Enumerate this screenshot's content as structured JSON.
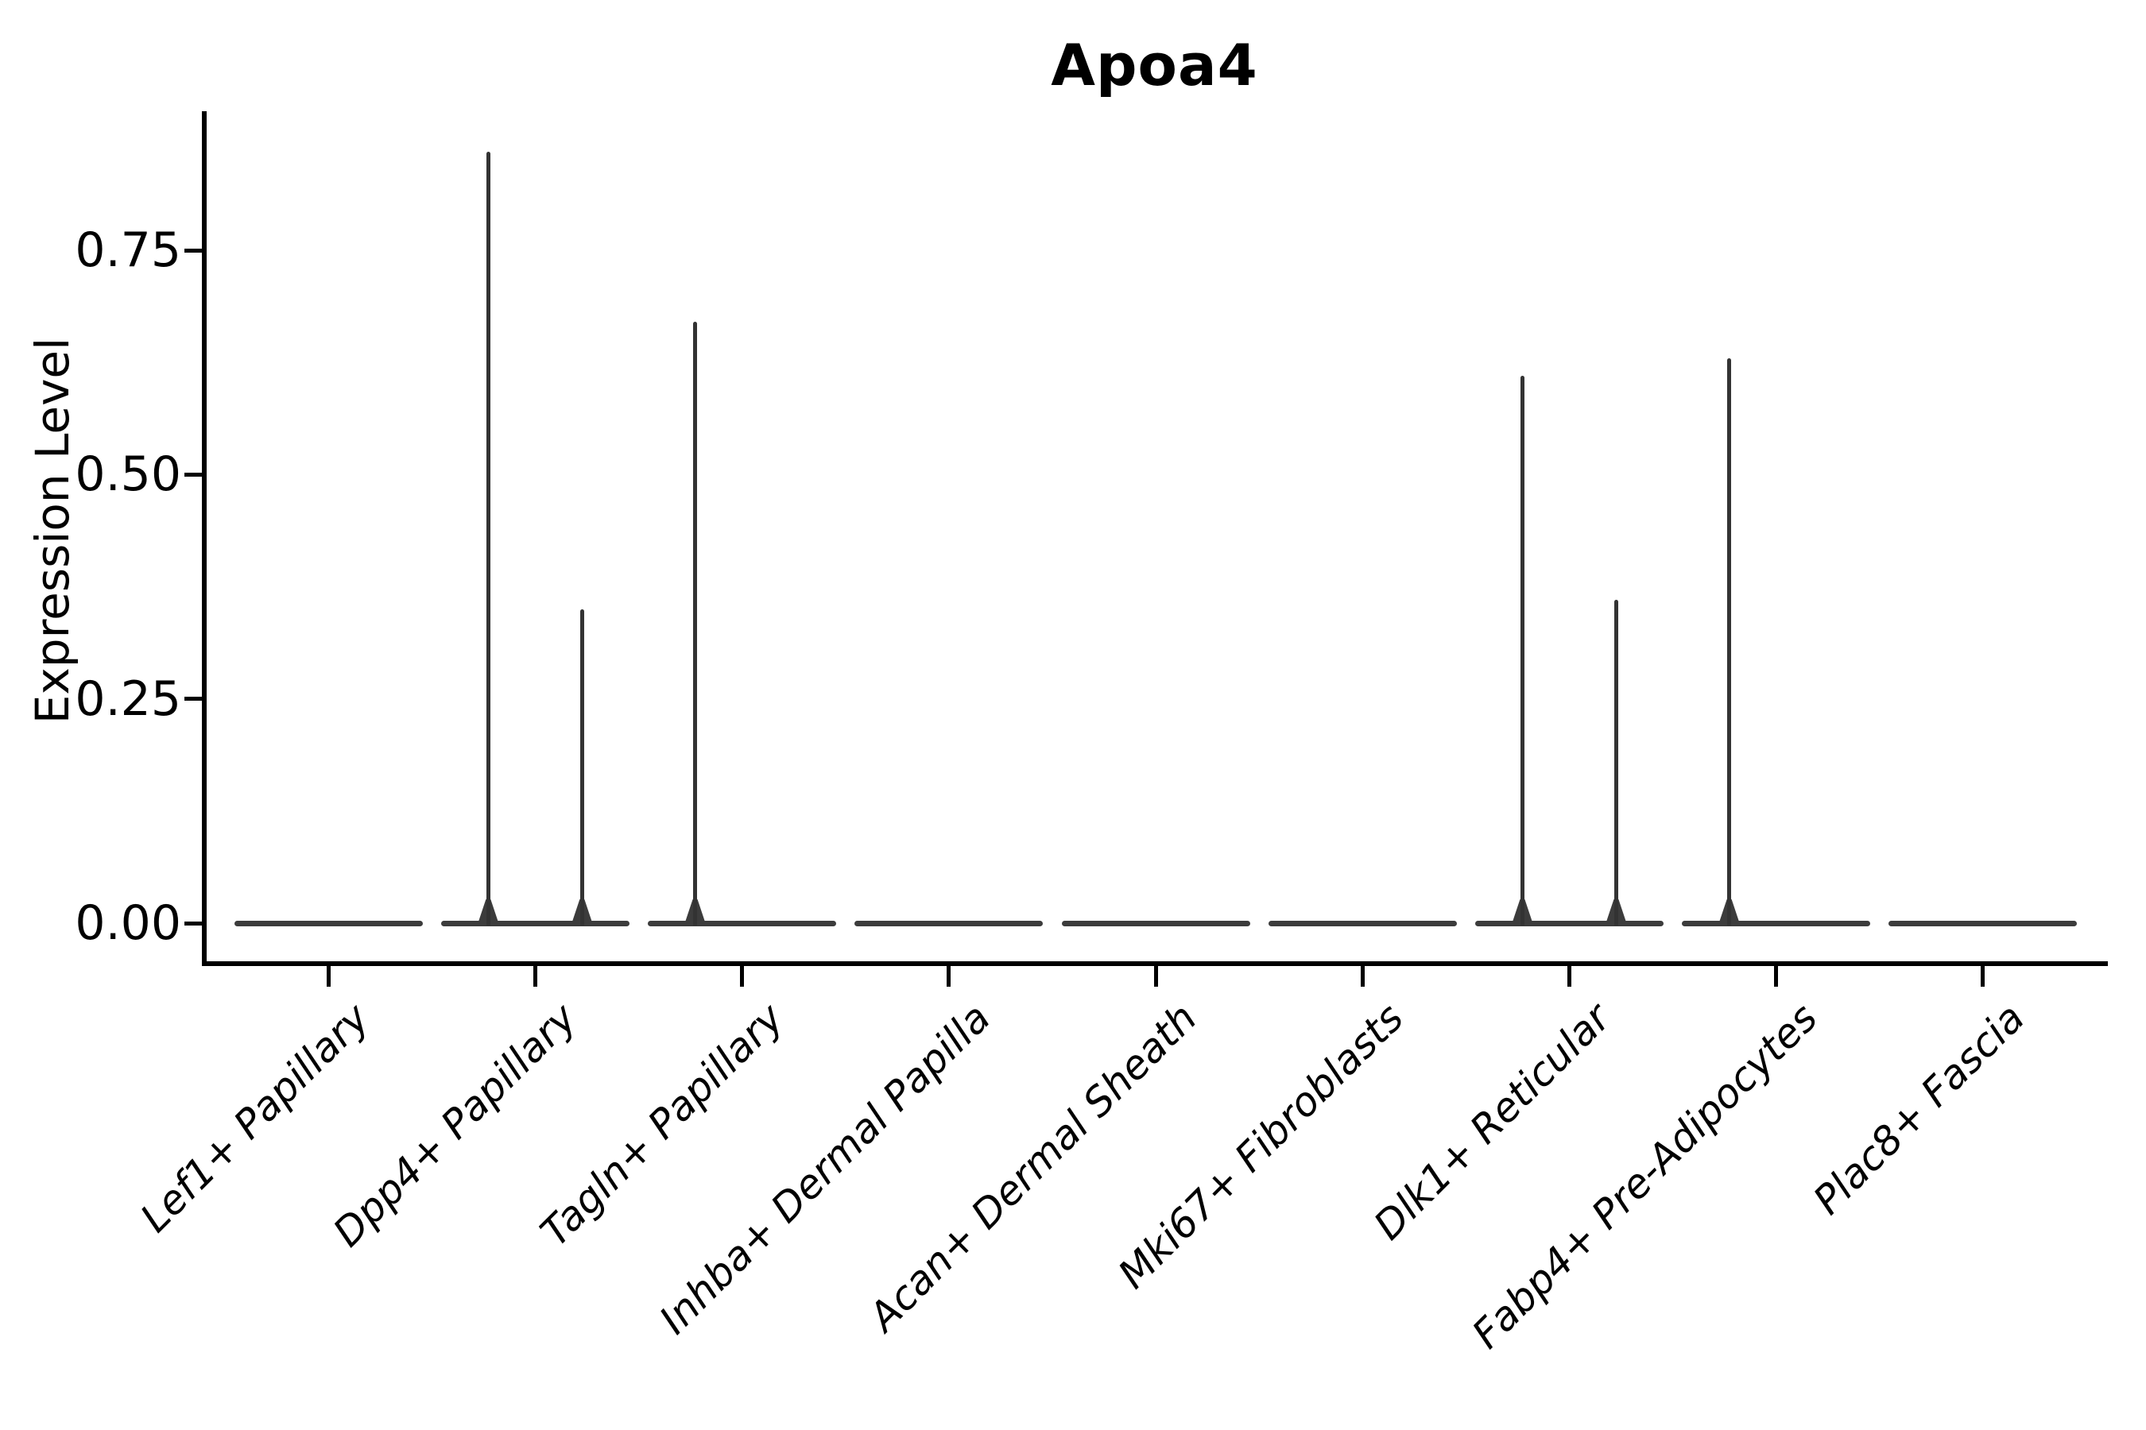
{
  "chart_data": {
    "type": "violin",
    "title": "Apoa4",
    "xlabel": "",
    "ylabel": "Expression Level",
    "categories": [
      "Lef1+ Papillary",
      "Dpp4+ Papillary",
      "Tagln+ Papillary",
      "Inhba+ Dermal Papilla",
      "Acan+ Dermal Sheath",
      "Mki67+ Fibroblasts",
      "Dlk1+ Reticular",
      "Fabp4+ Pre-Adipocytes",
      "Plac8+ Fascia"
    ],
    "series": [
      {
        "name": "left_sub_violin",
        "max_expression": [
          0,
          0.86,
          0.67,
          0,
          0,
          0,
          0.61,
          0.63,
          0
        ]
      },
      {
        "name": "right_sub_violin",
        "max_expression": [
          0,
          0.35,
          0,
          0,
          0,
          0,
          0.36,
          0,
          0
        ]
      }
    ],
    "baseline_value": 0.0,
    "yticks": {
      "labels": [
        "0.00",
        "0.25",
        "0.50",
        "0.75"
      ],
      "values": [
        0,
        0.25,
        0.5,
        0.75
      ]
    },
    "ylim": [
      -0.044,
      0.905
    ],
    "grid": false,
    "legend_position": "none",
    "colors": {
      "violin_stroke": "#333333",
      "baseline_stroke": "#3c3c3c",
      "axis": "#000000",
      "text": "#000000",
      "background": "#ffffff"
    }
  }
}
